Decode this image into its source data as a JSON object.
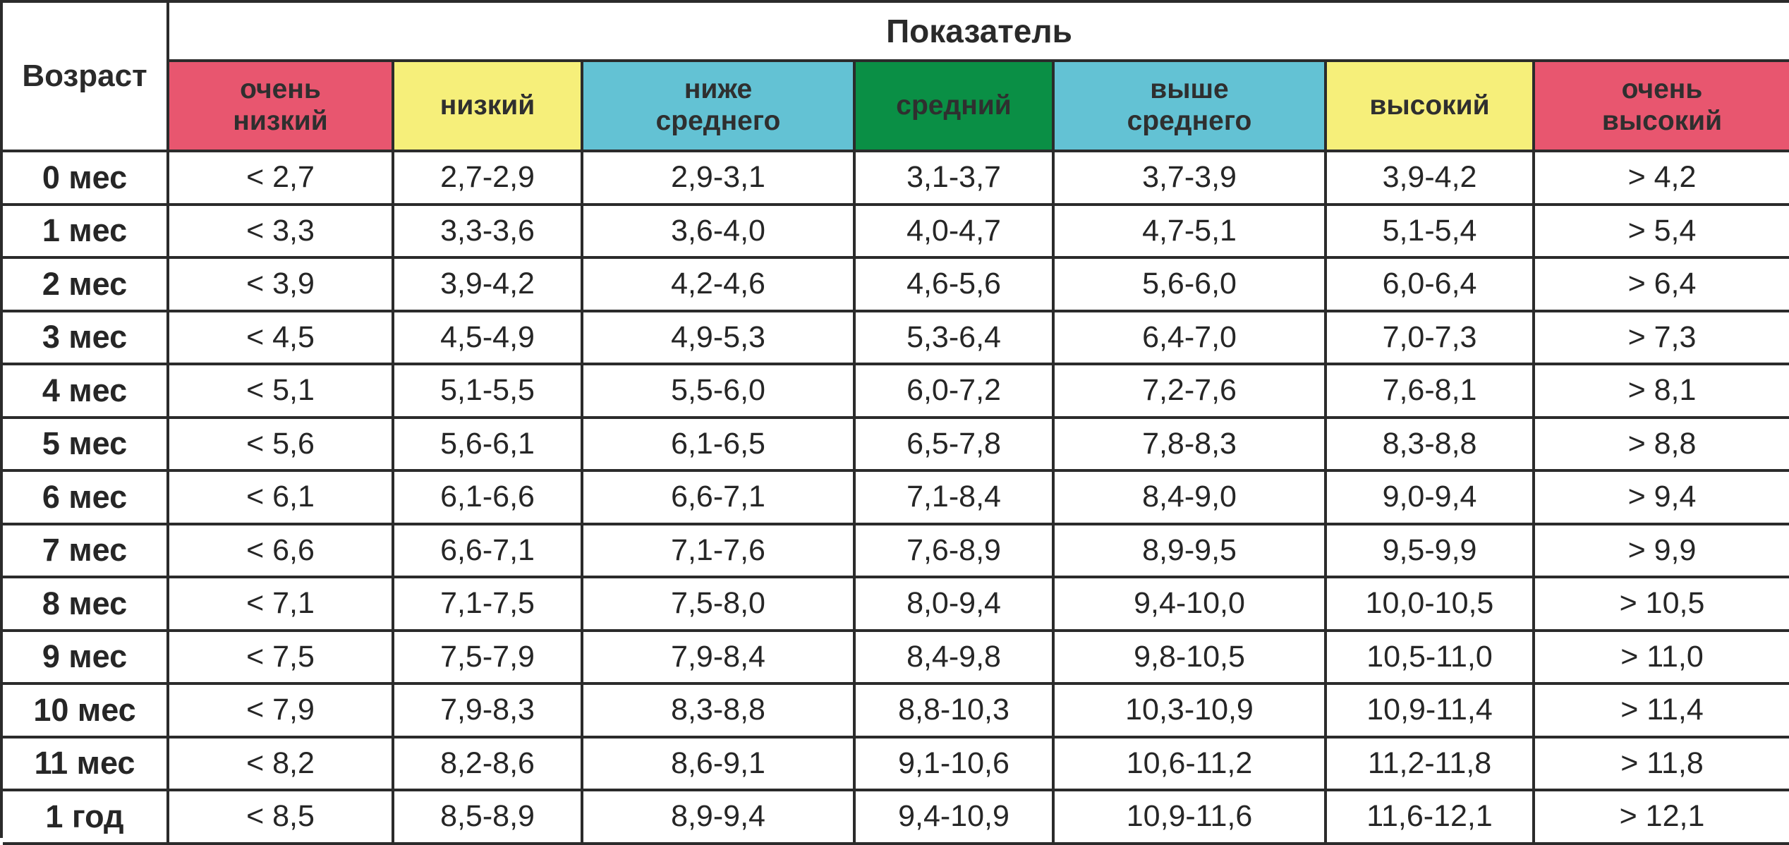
{
  "table": {
    "age_header": "Возраст",
    "indicator_header": "Показатель",
    "levels": [
      {
        "label": "очень\nнизкий",
        "color": "#e8566f"
      },
      {
        "label": "низкий",
        "color": "#f6ef7a"
      },
      {
        "label": "ниже\nсреднего",
        "color": "#63c2d4"
      },
      {
        "label": "средний",
        "color": "#0a8f45"
      },
      {
        "label": "выше\nсреднего",
        "color": "#63c2d4"
      },
      {
        "label": "высокий",
        "color": "#f6ef7a"
      },
      {
        "label": "очень\nвысокий",
        "color": "#e8566f"
      }
    ],
    "rows": [
      {
        "age": "0 мес",
        "values": [
          "< 2,7",
          "2,7-2,9",
          "2,9-3,1",
          "3,1-3,7",
          "3,7-3,9",
          "3,9-4,2",
          "> 4,2"
        ]
      },
      {
        "age": "1 мес",
        "values": [
          "< 3,3",
          "3,3-3,6",
          "3,6-4,0",
          "4,0-4,7",
          "4,7-5,1",
          "5,1-5,4",
          "> 5,4"
        ]
      },
      {
        "age": "2 мес",
        "values": [
          "< 3,9",
          "3,9-4,2",
          "4,2-4,6",
          "4,6-5,6",
          "5,6-6,0",
          "6,0-6,4",
          "> 6,4"
        ]
      },
      {
        "age": "3 мес",
        "values": [
          "< 4,5",
          "4,5-4,9",
          "4,9-5,3",
          "5,3-6,4",
          "6,4-7,0",
          "7,0-7,3",
          "> 7,3"
        ]
      },
      {
        "age": "4 мес",
        "values": [
          "< 5,1",
          "5,1-5,5",
          "5,5-6,0",
          "6,0-7,2",
          "7,2-7,6",
          "7,6-8,1",
          "> 8,1"
        ]
      },
      {
        "age": "5 мес",
        "values": [
          "< 5,6",
          "5,6-6,1",
          "6,1-6,5",
          "6,5-7,8",
          "7,8-8,3",
          "8,3-8,8",
          "> 8,8"
        ]
      },
      {
        "age": "6 мес",
        "values": [
          "< 6,1",
          "6,1-6,6",
          "6,6-7,1",
          "7,1-8,4",
          "8,4-9,0",
          "9,0-9,4",
          "> 9,4"
        ]
      },
      {
        "age": "7 мес",
        "values": [
          "< 6,6",
          "6,6-7,1",
          "7,1-7,6",
          "7,6-8,9",
          "8,9-9,5",
          "9,5-9,9",
          "> 9,9"
        ]
      },
      {
        "age": "8 мес",
        "values": [
          "< 7,1",
          "7,1-7,5",
          "7,5-8,0",
          "8,0-9,4",
          "9,4-10,0",
          "10,0-10,5",
          "> 10,5"
        ]
      },
      {
        "age": "9 мес",
        "values": [
          "< 7,5",
          "7,5-7,9",
          "7,9-8,4",
          "8,4-9,8",
          "9,8-10,5",
          "10,5-11,0",
          "> 11,0"
        ]
      },
      {
        "age": "10 мес",
        "values": [
          "< 7,9",
          "7,9-8,3",
          "8,3-8,8",
          "8,8-10,3",
          "10,3-10,9",
          "10,9-11,4",
          "> 11,4"
        ]
      },
      {
        "age": "11 мес",
        "values": [
          "< 8,2",
          "8,2-8,6",
          "8,6-9,1",
          "9,1-10,6",
          "10,6-11,2",
          "11,2-11,8",
          "> 11,8"
        ]
      },
      {
        "age": "1 год",
        "values": [
          "< 8,5",
          "8,5-8,9",
          "8,9-9,4",
          "9,4-10,9",
          "10,9-11,6",
          "11,6-12,1",
          "> 12,1"
        ]
      }
    ]
  }
}
